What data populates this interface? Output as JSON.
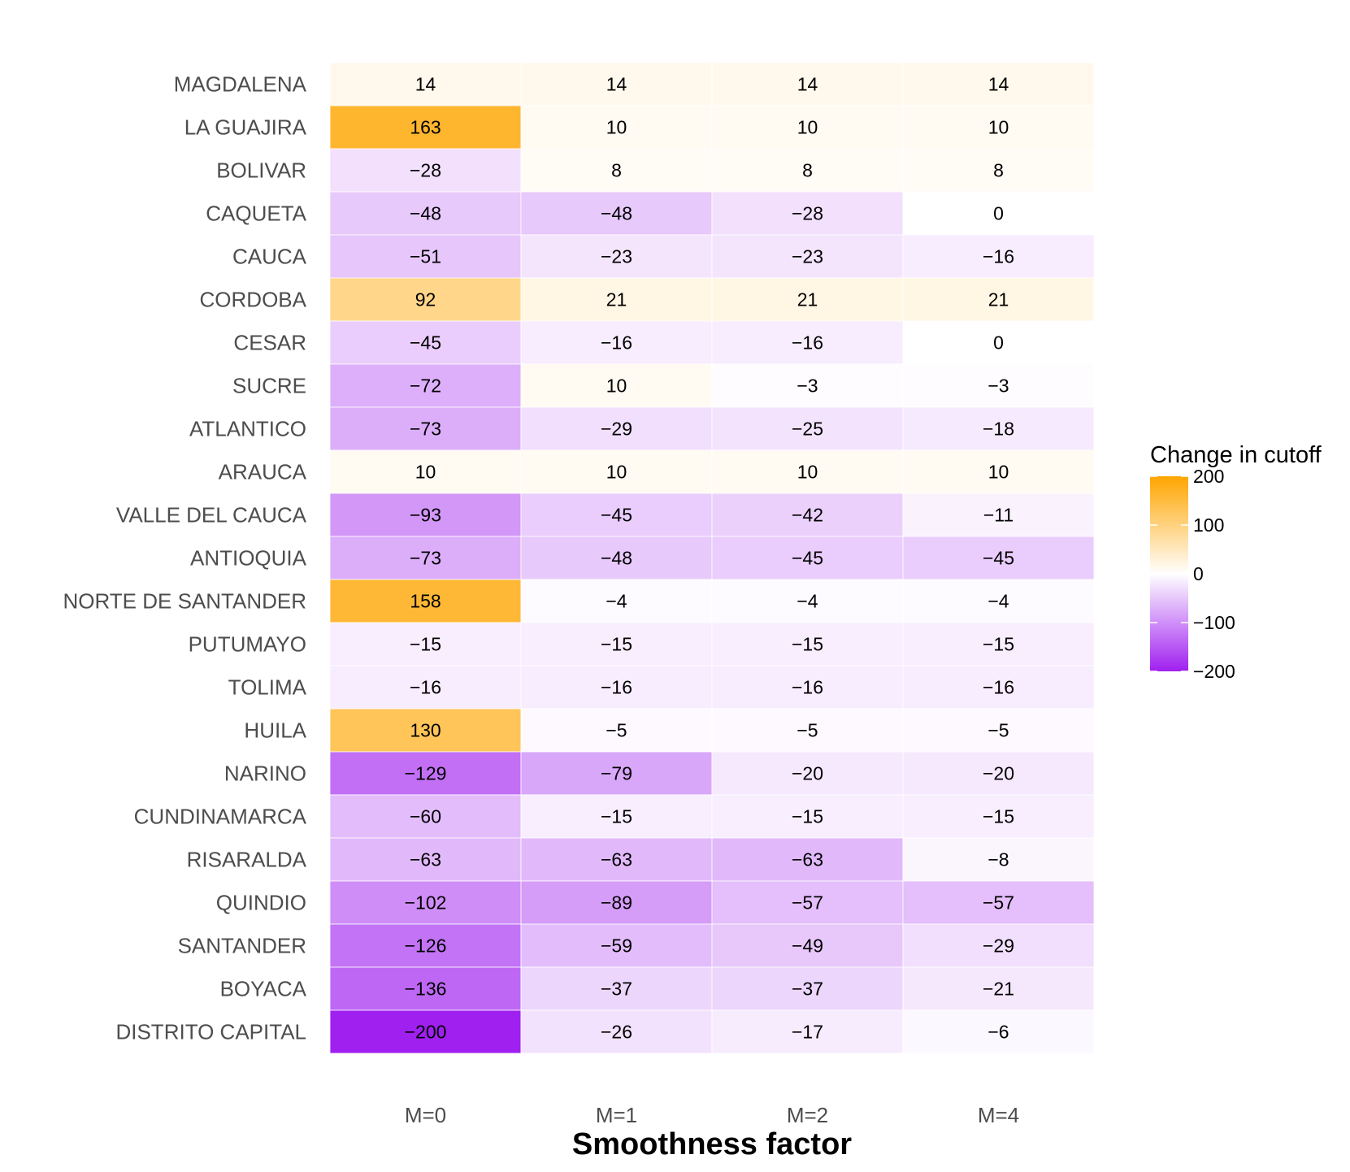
{
  "chart_data": {
    "type": "heatmap",
    "xlabel": "Smoothness factor",
    "ylabel": "",
    "columns": [
      "M=0",
      "M=1",
      "M=2",
      "M=4"
    ],
    "rows": [
      {
        "name": "MAGDALENA",
        "values": [
          14,
          14,
          14,
          14
        ]
      },
      {
        "name": "LA GUAJIRA",
        "values": [
          163,
          10,
          10,
          10
        ]
      },
      {
        "name": "BOLIVAR",
        "values": [
          -28,
          8,
          8,
          8
        ]
      },
      {
        "name": "CAQUETA",
        "values": [
          -48,
          -48,
          -28,
          0
        ]
      },
      {
        "name": "CAUCA",
        "values": [
          -51,
          -23,
          -23,
          -16
        ]
      },
      {
        "name": "CORDOBA",
        "values": [
          92,
          21,
          21,
          21
        ]
      },
      {
        "name": "CESAR",
        "values": [
          -45,
          -16,
          -16,
          0
        ]
      },
      {
        "name": "SUCRE",
        "values": [
          -72,
          10,
          -3,
          -3
        ]
      },
      {
        "name": "ATLANTICO",
        "values": [
          -73,
          -29,
          -25,
          -18
        ]
      },
      {
        "name": "ARAUCA",
        "values": [
          10,
          10,
          10,
          10
        ]
      },
      {
        "name": "VALLE DEL CAUCA",
        "values": [
          -93,
          -45,
          -42,
          -11
        ]
      },
      {
        "name": "ANTIOQUIA",
        "values": [
          -73,
          -48,
          -45,
          -45
        ]
      },
      {
        "name": "NORTE DE SANTANDER",
        "values": [
          158,
          -4,
          -4,
          -4
        ]
      },
      {
        "name": "PUTUMAYO",
        "values": [
          -15,
          -15,
          -15,
          -15
        ]
      },
      {
        "name": "TOLIMA",
        "values": [
          -16,
          -16,
          -16,
          -16
        ]
      },
      {
        "name": "HUILA",
        "values": [
          130,
          -5,
          -5,
          -5
        ]
      },
      {
        "name": "NARINO",
        "values": [
          -129,
          -79,
          -20,
          -20
        ]
      },
      {
        "name": "CUNDINAMARCA",
        "values": [
          -60,
          -15,
          -15,
          -15
        ]
      },
      {
        "name": "RISARALDA",
        "values": [
          -63,
          -63,
          -63,
          -8
        ]
      },
      {
        "name": "QUINDIO",
        "values": [
          -102,
          -89,
          -57,
          -57
        ]
      },
      {
        "name": "SANTANDER",
        "values": [
          -126,
          -59,
          -49,
          -29
        ]
      },
      {
        "name": "BOYACA",
        "values": [
          -136,
          -37,
          -37,
          -21
        ]
      },
      {
        "name": "DISTRITO CAPITAL",
        "values": [
          -200,
          -26,
          -17,
          -6
        ]
      }
    ],
    "legend": {
      "title": "Change in cutoff",
      "ticks": [
        200,
        100,
        0,
        -100,
        -200
      ],
      "range": [
        -200,
        200
      ],
      "position": "right",
      "low_color": "#a020f0",
      "mid_color": "#ffffff",
      "high_color": "#ffa500"
    }
  }
}
